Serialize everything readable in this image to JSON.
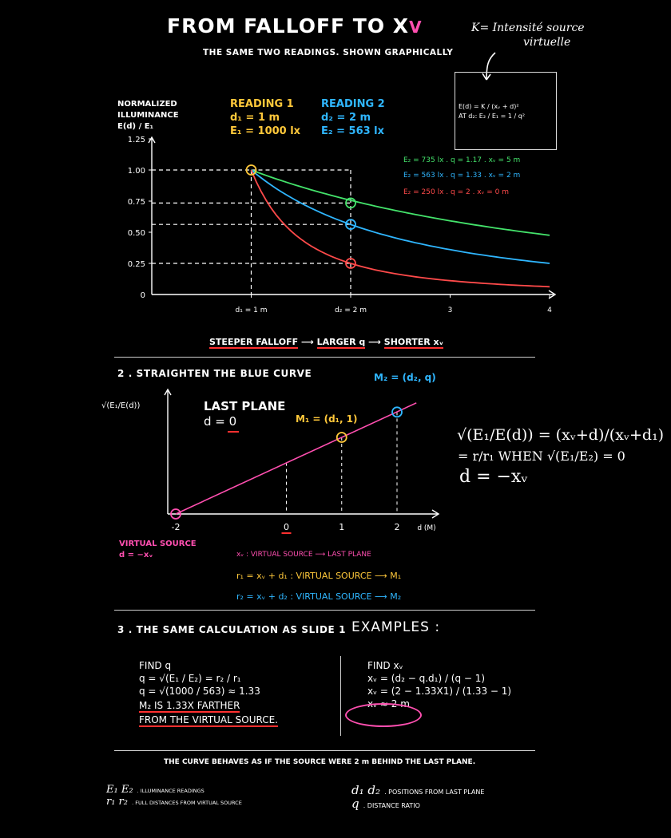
{
  "header": {
    "title": "FROM FALLOFF TO X",
    "title_sub": "V",
    "subtitle": "THE SAME TWO READINGS. SHOWN GRAPHICALLY",
    "note_line1": "K= Intensité source",
    "note_line2": "virtuelle"
  },
  "formula_box": {
    "line1": "E(d) = K / (xᵥ + d)²",
    "line2": "AT d₂: E₂ / E₁ = 1 / q²"
  },
  "chart1": {
    "ylabel_line1": "NORMALIZED",
    "ylabel_line2": "ILLUMINANCE",
    "ylabel_line3": "E(d) / E₁",
    "yticks": [
      "1.25",
      "1.00",
      "0.75",
      "0.50",
      "0.25",
      "0"
    ],
    "xticks": [
      "d₁ = 1 m",
      "d₂ = 2 m",
      "3",
      "4"
    ],
    "reading1_title": "READING 1",
    "reading1_d": "d₁ = 1 m",
    "reading1_e": "E₁ = 1000 lx",
    "reading2_title": "READING 2",
    "reading2_d": "d₂ = 2 m",
    "reading2_e": "E₂ = 563 lx",
    "legend_green": "E₂ = 735 lx . q = 1.17 . xᵥ = 5 m",
    "legend_blue": "E₂ = 563 lx . q = 1.33 . xᵥ = 2 m",
    "legend_red": "E₂ = 250 lx . q = 2 . xᵥ = 0 m",
    "caption_a": "STEEPER FALLOFF",
    "caption_b": "LARGER q",
    "caption_c": "SHORTER xᵥ",
    "arrow": "⟶"
  },
  "section2": {
    "heading": "2 . STRAIGHTEN THE BLUE CURVE",
    "ylabel": "√(E₁/E(d))",
    "last_plane": "LAST PLANE",
    "d_zero": "d = 0",
    "m1": "M₁ = (d₁, 1)",
    "m2": "M₂ = (d₂, q)",
    "xticks": [
      "-2",
      "0",
      "1",
      "2"
    ],
    "xunit": "d (M)",
    "virtual_source": "VIRTUAL SOURCE",
    "virtual_d": "d = −xᵥ",
    "def_xv": "xᵥ : VIRTUAL SOURCE ⟶ LAST PLANE",
    "def_r1": "r₁ = xᵥ + d₁ : VIRTUAL SOURCE ⟶ M₁",
    "def_r2": "r₂ = xᵥ + d₂ : VIRTUAL SOURCE ⟶ M₂",
    "eq1": "√(E₁/E(d)) = (xᵥ+d)/(xᵥ+d₁)",
    "eq2": "= r/r₁  WHEN √(E₁/E₂) = 0",
    "eq3": "d = −xᵥ"
  },
  "section3": {
    "heading": "3 . THE SAME CALCULATION AS SLIDE 1",
    "examples": "EXAMPLES :",
    "left_title": "FIND q",
    "left_l1": "q = √(E₁ / E₂) = r₂ / r₁",
    "left_l2": "q = √(1000 / 563) ≈ 1.33",
    "left_l3": "M₂ IS 1.33X FARTHER",
    "left_l4": "FROM THE VIRTUAL SOURCE.",
    "right_title": "FIND xᵥ",
    "right_l1": "xᵥ = (d₂ − q.d₁) / (q − 1)",
    "right_l2": "xᵥ = (2 − 1.33X1) / (1.33 − 1)",
    "right_l3": "xᵥ ≈ 2 m"
  },
  "footer": {
    "statement": "THE CURVE BEHAVES AS IF THE SOURCE WERE 2 m BEHIND THE LAST PLANE.",
    "leg1_sym": "E₁ E₂",
    "leg1_text": ". ILLUMINANCE READINGS",
    "leg2_sym": "r₁ r₂",
    "leg2_text": ". FULL DISTANCES FROM VIRTUAL SOURCE",
    "leg3_sym": "d₁ d₂",
    "leg3_text": ". POSITIONS FROM LAST PLANE",
    "leg4_sym": "q",
    "leg4_text": ". DISTANCE RATIO"
  },
  "colors": {
    "green": "#44e36b",
    "blue": "#2fb6ff",
    "red": "#ff4a4a",
    "yellow": "#ffc83a",
    "pink": "#ff4fb0"
  },
  "chart_data": [
    {
      "type": "line",
      "xlabel": "",
      "ylabel": "NORMALIZED ILLUMINANCE E(d) / E₁",
      "xlim": [
        0,
        4
      ],
      "ylim": [
        0,
        1.25
      ],
      "grid": false,
      "series": [
        {
          "name": "E₂ = 735 lx . q = 1.17 . xᵥ = 5 m",
          "color": "#44e36b",
          "x": [
            1,
            1.5,
            2,
            2.5,
            3,
            3.5,
            4
          ],
          "y": [
            1.0,
            0.85,
            0.735,
            0.64,
            0.57,
            0.51,
            0.46
          ]
        },
        {
          "name": "E₂ = 563 lx . q = 1.33 . xᵥ = 2 m",
          "color": "#2fb6ff",
          "x": [
            1,
            1.5,
            2,
            2.5,
            3,
            3.5,
            4
          ],
          "y": [
            1.0,
            0.74,
            0.563,
            0.44,
            0.36,
            0.3,
            0.25
          ]
        },
        {
          "name": "E₂ = 250 lx . q = 2 . xᵥ = 0 m",
          "color": "#ff4a4a",
          "x": [
            1,
            1.25,
            1.5,
            2,
            2.5,
            3,
            3.5,
            4
          ],
          "y": [
            1.0,
            0.64,
            0.44,
            0.25,
            0.16,
            0.11,
            0.082,
            0.0625
          ]
        }
      ]
    },
    {
      "type": "line",
      "ylabel": "√(E₁/E(d))",
      "xlabel": "d (M)",
      "xlim": [
        -2,
        2.5
      ],
      "series": [
        {
          "name": "",
          "color": "#ff4fb0",
          "x": [
            -2,
            1,
            2
          ],
          "y": [
            0,
            1,
            1.33
          ]
        }
      ],
      "points": [
        {
          "label": "M₁ = (d₁, 1)",
          "x": 1,
          "y": 1
        },
        {
          "label": "M₂ = (d₂, q)",
          "x": 2,
          "y": 1.33
        }
      ]
    }
  ]
}
